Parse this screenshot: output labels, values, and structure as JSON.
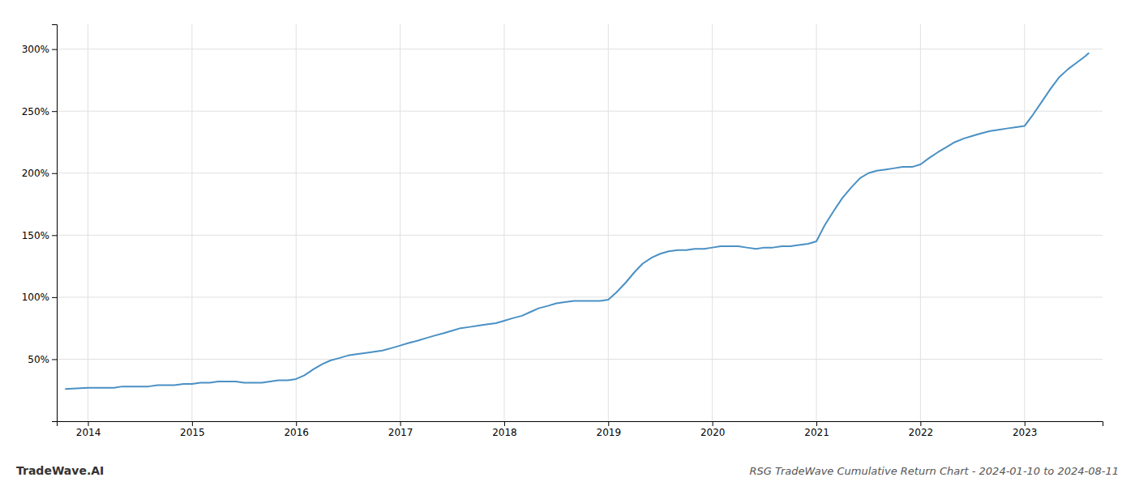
{
  "chart_data": {
    "type": "line",
    "title": "RSG TradeWave Cumulative Return Chart - 2024-01-10 to 2024-08-11",
    "annotations": [
      "TradeWave.AI"
    ],
    "x": [
      2013.78,
      2014.0,
      2014.08,
      2014.17,
      2014.25,
      2014.33,
      2014.42,
      2014.5,
      2014.58,
      2014.67,
      2014.75,
      2014.83,
      2014.92,
      2015.0,
      2015.08,
      2015.17,
      2015.25,
      2015.33,
      2015.42,
      2015.5,
      2015.58,
      2015.67,
      2015.75,
      2015.83,
      2015.92,
      2016.0,
      2016.08,
      2016.17,
      2016.25,
      2016.33,
      2016.42,
      2016.5,
      2016.58,
      2016.67,
      2016.75,
      2016.83,
      2016.92,
      2017.0,
      2017.08,
      2017.17,
      2017.25,
      2017.33,
      2017.42,
      2017.5,
      2017.58,
      2017.67,
      2017.75,
      2017.83,
      2017.92,
      2018.0,
      2018.08,
      2018.17,
      2018.25,
      2018.33,
      2018.42,
      2018.5,
      2018.58,
      2018.67,
      2018.75,
      2018.83,
      2018.92,
      2019.0,
      2019.08,
      2019.17,
      2019.25,
      2019.33,
      2019.42,
      2019.5,
      2019.58,
      2019.67,
      2019.75,
      2019.83,
      2019.92,
      2020.0,
      2020.08,
      2020.17,
      2020.25,
      2020.33,
      2020.42,
      2020.5,
      2020.58,
      2020.67,
      2020.75,
      2020.83,
      2020.92,
      2021.0,
      2021.08,
      2021.17,
      2021.25,
      2021.33,
      2021.42,
      2021.5,
      2021.58,
      2021.67,
      2021.75,
      2021.83,
      2021.92,
      2022.0,
      2022.08,
      2022.17,
      2022.25,
      2022.33,
      2022.42,
      2022.5,
      2022.58,
      2022.67,
      2022.75,
      2022.83,
      2022.92,
      2023.0,
      2023.08,
      2023.17,
      2023.25,
      2023.33,
      2023.42,
      2023.5,
      2023.58,
      2023.62
    ],
    "values": [
      26,
      27,
      27,
      27,
      27,
      28,
      28,
      28,
      28,
      29,
      29,
      29,
      30,
      30,
      31,
      31,
      32,
      32,
      32,
      31,
      31,
      31,
      32,
      33,
      33,
      34,
      37,
      42,
      46,
      49,
      51,
      53,
      54,
      55,
      56,
      57,
      59,
      61,
      63,
      65,
      67,
      69,
      71,
      73,
      75,
      76,
      77,
      78,
      79,
      81,
      83,
      85,
      88,
      91,
      93,
      95,
      96,
      97,
      97,
      97,
      97,
      98,
      104,
      112,
      120,
      127,
      132,
      135,
      137,
      138,
      138,
      139,
      139,
      140,
      141,
      141,
      141,
      140,
      139,
      140,
      140,
      141,
      141,
      142,
      143,
      145,
      158,
      170,
      180,
      188,
      196,
      200,
      202,
      203,
      204,
      205,
      205,
      207,
      212,
      217,
      221,
      225,
      228,
      230,
      232,
      234,
      235,
      236,
      237,
      238,
      247,
      258,
      268,
      277,
      284,
      289,
      294,
      297
    ],
    "color": "#4a90c4",
    "xlim": [
      2013.7,
      2023.75
    ],
    "xticks": [
      2014,
      2015,
      2016,
      2017,
      2018,
      2019,
      2020,
      2021,
      2022,
      2023
    ],
    "ylim": [
      0,
      320
    ],
    "yticks": [
      {
        "value": 50,
        "label": "50%"
      },
      {
        "value": 100,
        "label": "100%"
      },
      {
        "value": 150,
        "label": "150%"
      },
      {
        "value": 200,
        "label": "200%"
      },
      {
        "value": 250,
        "label": "250%"
      },
      {
        "value": 300,
        "label": "300%"
      }
    ],
    "grid": true
  }
}
